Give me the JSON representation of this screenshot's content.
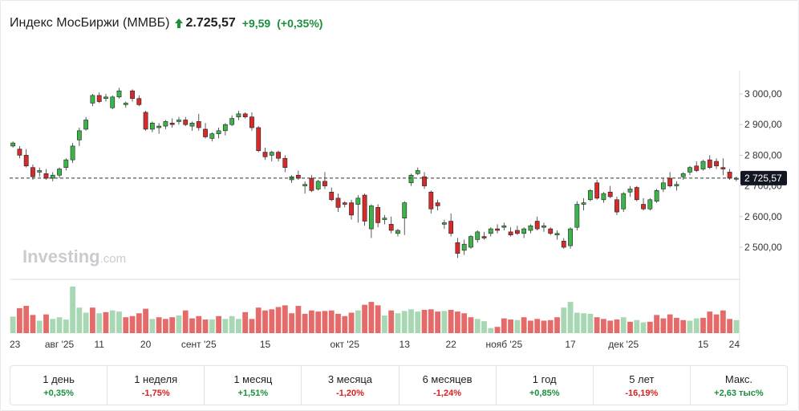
{
  "header": {
    "title": "Индекс МосБиржи (ММВБ)",
    "price": "2.725,57",
    "change": "+9,59",
    "change_pct": "(+0,35%)",
    "arrow_icon": "up-arrow-icon"
  },
  "colors": {
    "up": "#1a8f3c",
    "down": "#d91e1e",
    "candle_up": "#3bb54a",
    "candle_down": "#d62b2b",
    "vol_up": "#a7d8b3",
    "vol_down": "#e56b6b",
    "price_tag_bg": "#131722"
  },
  "watermark": {
    "brand": "Investing",
    "suffix": ".com"
  },
  "chart_data": {
    "type": "candlestick",
    "title": "Индекс МосБиржи (ММВБ)",
    "y_axis_ticks": [
      3000,
      2900,
      2800,
      2700,
      2600,
      2500
    ],
    "y_tick_labels": [
      "3 000,00",
      "2 900,00",
      "2 800,00",
      "2 700,00",
      "2 600,00",
      "2 500,00"
    ],
    "ylim": [
      2395,
      3080
    ],
    "current_price": 2725.57,
    "current_price_label": "2 725,57",
    "x_tick_labels": [
      {
        "label": "23",
        "index": 0
      },
      {
        "label": "авг '25",
        "index": 7
      },
      {
        "label": "11",
        "index": 13
      },
      {
        "label": "20",
        "index": 20
      },
      {
        "label": "сент '25",
        "index": 28
      },
      {
        "label": "15",
        "index": 38
      },
      {
        "label": "окт '25",
        "index": 50
      },
      {
        "label": "13",
        "index": 59
      },
      {
        "label": "22",
        "index": 66
      },
      {
        "label": "нояб '25",
        "index": 74
      },
      {
        "label": "17",
        "index": 84
      },
      {
        "label": "дек '25",
        "index": 92
      },
      {
        "label": "15",
        "index": 104
      },
      {
        "label": "24",
        "index": 111
      }
    ],
    "candles": [
      [
        2830,
        2845,
        2825,
        2840
      ],
      [
        2820,
        2830,
        2790,
        2800
      ],
      [
        2800,
        2820,
        2760,
        2765
      ],
      [
        2760,
        2770,
        2720,
        2730
      ],
      [
        2745,
        2760,
        2730,
        2750
      ],
      [
        2740,
        2755,
        2720,
        2725
      ],
      [
        2725,
        2745,
        2715,
        2735
      ],
      [
        2735,
        2760,
        2725,
        2755
      ],
      [
        2760,
        2790,
        2750,
        2785
      ],
      [
        2785,
        2840,
        2775,
        2830
      ],
      [
        2850,
        2890,
        2830,
        2880
      ],
      [
        2885,
        2925,
        2880,
        2915
      ],
      [
        2970,
        3000,
        2960,
        2995
      ],
      [
        2995,
        3005,
        2970,
        2975
      ],
      [
        2985,
        3000,
        2975,
        2990
      ],
      [
        2955,
        2995,
        2950,
        2990
      ],
      [
        2990,
        3020,
        2985,
        3010
      ],
      [
        2965,
        2975,
        2955,
        2970
      ],
      [
        3010,
        3015,
        2975,
        2985
      ],
      [
        2985,
        2995,
        2960,
        2965
      ],
      [
        2940,
        2945,
        2880,
        2885
      ],
      [
        2885,
        2910,
        2875,
        2905
      ],
      [
        2890,
        2905,
        2870,
        2895
      ],
      [
        2895,
        2915,
        2885,
        2910
      ],
      [
        2905,
        2920,
        2890,
        2900
      ],
      [
        2910,
        2925,
        2900,
        2915
      ],
      [
        2915,
        2925,
        2895,
        2900
      ],
      [
        2895,
        2910,
        2880,
        2905
      ],
      [
        2910,
        2935,
        2880,
        2890
      ],
      [
        2885,
        2905,
        2855,
        2860
      ],
      [
        2855,
        2875,
        2845,
        2870
      ],
      [
        2870,
        2890,
        2855,
        2880
      ],
      [
        2880,
        2905,
        2865,
        2900
      ],
      [
        2900,
        2930,
        2895,
        2920
      ],
      [
        2925,
        2945,
        2915,
        2935
      ],
      [
        2935,
        2940,
        2920,
        2925
      ],
      [
        2925,
        2940,
        2880,
        2890
      ],
      [
        2890,
        2895,
        2810,
        2815
      ],
      [
        2810,
        2825,
        2785,
        2795
      ],
      [
        2800,
        2815,
        2780,
        2810
      ],
      [
        2810,
        2815,
        2780,
        2790
      ],
      [
        2790,
        2800,
        2745,
        2760
      ],
      [
        2720,
        2735,
        2710,
        2730
      ],
      [
        2735,
        2750,
        2720,
        2725
      ],
      [
        2700,
        2715,
        2675,
        2705
      ],
      [
        2725,
        2735,
        2680,
        2685
      ],
      [
        2690,
        2720,
        2685,
        2715
      ],
      [
        2715,
        2745,
        2690,
        2700
      ],
      [
        2680,
        2695,
        2650,
        2655
      ],
      [
        2660,
        2675,
        2615,
        2630
      ],
      [
        2645,
        2650,
        2630,
        2640
      ],
      [
        2645,
        2655,
        2590,
        2605
      ],
      [
        2640,
        2670,
        2580,
        2660
      ],
      [
        2670,
        2675,
        2570,
        2585
      ],
      [
        2560,
        2640,
        2530,
        2635
      ],
      [
        2630,
        2640,
        2565,
        2580
      ],
      [
        2590,
        2605,
        2575,
        2595
      ],
      [
        2575,
        2600,
        2545,
        2555
      ],
      [
        2545,
        2560,
        2535,
        2555
      ],
      [
        2595,
        2650,
        2540,
        2645
      ],
      [
        2710,
        2740,
        2700,
        2735
      ],
      [
        2740,
        2760,
        2735,
        2750
      ],
      [
        2730,
        2745,
        2690,
        2700
      ],
      [
        2680,
        2685,
        2610,
        2625
      ],
      [
        2645,
        2655,
        2620,
        2635
      ],
      [
        2575,
        2590,
        2560,
        2580
      ],
      [
        2585,
        2610,
        2535,
        2545
      ],
      [
        2515,
        2530,
        2465,
        2480
      ],
      [
        2490,
        2525,
        2475,
        2510
      ],
      [
        2500,
        2540,
        2495,
        2535
      ],
      [
        2525,
        2555,
        2515,
        2550
      ],
      [
        2535,
        2550,
        2525,
        2530
      ],
      [
        2545,
        2565,
        2535,
        2560
      ],
      [
        2560,
        2575,
        2545,
        2555
      ],
      [
        2565,
        2580,
        2555,
        2570
      ],
      [
        2550,
        2565,
        2535,
        2540
      ],
      [
        2555,
        2570,
        2540,
        2545
      ],
      [
        2545,
        2565,
        2530,
        2560
      ],
      [
        2555,
        2575,
        2545,
        2570
      ],
      [
        2585,
        2600,
        2555,
        2560
      ],
      [
        2565,
        2580,
        2550,
        2570
      ],
      [
        2560,
        2565,
        2540,
        2545
      ],
      [
        2540,
        2555,
        2525,
        2545
      ],
      [
        2520,
        2530,
        2495,
        2500
      ],
      [
        2505,
        2565,
        2495,
        2560
      ],
      [
        2565,
        2650,
        2555,
        2640
      ],
      [
        2640,
        2660,
        2620,
        2645
      ],
      [
        2655,
        2690,
        2650,
        2685
      ],
      [
        2710,
        2720,
        2655,
        2660
      ],
      [
        2655,
        2680,
        2645,
        2675
      ],
      [
        2680,
        2700,
        2660,
        2665
      ],
      [
        2655,
        2665,
        2605,
        2615
      ],
      [
        2625,
        2680,
        2615,
        2675
      ],
      [
        2680,
        2700,
        2665,
        2690
      ],
      [
        2695,
        2700,
        2650,
        2655
      ],
      [
        2640,
        2660,
        2620,
        2625
      ],
      [
        2625,
        2660,
        2620,
        2655
      ],
      [
        2650,
        2690,
        2645,
        2685
      ],
      [
        2690,
        2725,
        2680,
        2710
      ],
      [
        2725,
        2745,
        2695,
        2700
      ],
      [
        2700,
        2715,
        2685,
        2705
      ],
      [
        2730,
        2745,
        2720,
        2740
      ],
      [
        2745,
        2765,
        2735,
        2760
      ],
      [
        2765,
        2780,
        2745,
        2750
      ],
      [
        2755,
        2785,
        2750,
        2780
      ],
      [
        2785,
        2800,
        2755,
        2760
      ],
      [
        2780,
        2790,
        2755,
        2765
      ],
      [
        2760,
        2790,
        2735,
        2755
      ],
      [
        2745,
        2755,
        2720,
        2725
      ],
      [
        2722,
        2730,
        2715,
        2725
      ]
    ],
    "volume": [
      [
        29,
        "up"
      ],
      [
        44,
        "down"
      ],
      [
        48,
        "down"
      ],
      [
        32,
        "down"
      ],
      [
        22,
        "up"
      ],
      [
        33,
        "down"
      ],
      [
        25,
        "up"
      ],
      [
        28,
        "up"
      ],
      [
        24,
        "up"
      ],
      [
        82,
        "up"
      ],
      [
        45,
        "up"
      ],
      [
        36,
        "up"
      ],
      [
        45,
        "down"
      ],
      [
        35,
        "up"
      ],
      [
        37,
        "down"
      ],
      [
        40,
        "up"
      ],
      [
        38,
        "up"
      ],
      [
        28,
        "down"
      ],
      [
        30,
        "down"
      ],
      [
        35,
        "down"
      ],
      [
        43,
        "down"
      ],
      [
        25,
        "up"
      ],
      [
        28,
        "down"
      ],
      [
        25,
        "down"
      ],
      [
        28,
        "down"
      ],
      [
        31,
        "up"
      ],
      [
        40,
        "down"
      ],
      [
        26,
        "down"
      ],
      [
        30,
        "down"
      ],
      [
        24,
        "down"
      ],
      [
        24,
        "up"
      ],
      [
        30,
        "down"
      ],
      [
        25,
        "up"
      ],
      [
        30,
        "up"
      ],
      [
        25,
        "up"
      ],
      [
        37,
        "down"
      ],
      [
        25,
        "down"
      ],
      [
        45,
        "down"
      ],
      [
        40,
        "down"
      ],
      [
        42,
        "down"
      ],
      [
        46,
        "down"
      ],
      [
        49,
        "down"
      ],
      [
        35,
        "down"
      ],
      [
        48,
        "down"
      ],
      [
        34,
        "down"
      ],
      [
        40,
        "down"
      ],
      [
        38,
        "down"
      ],
      [
        39,
        "down"
      ],
      [
        40,
        "down"
      ],
      [
        34,
        "down"
      ],
      [
        30,
        "down"
      ],
      [
        36,
        "down"
      ],
      [
        40,
        "up"
      ],
      [
        50,
        "down"
      ],
      [
        55,
        "down"
      ],
      [
        49,
        "down"
      ],
      [
        31,
        "up"
      ],
      [
        40,
        "down"
      ],
      [
        35,
        "up"
      ],
      [
        39,
        "up"
      ],
      [
        42,
        "up"
      ],
      [
        38,
        "up"
      ],
      [
        41,
        "down"
      ],
      [
        42,
        "down"
      ],
      [
        38,
        "down"
      ],
      [
        39,
        "up"
      ],
      [
        41,
        "down"
      ],
      [
        38,
        "down"
      ],
      [
        35,
        "down"
      ],
      [
        28,
        "down"
      ],
      [
        25,
        "up"
      ],
      [
        21,
        "up"
      ],
      [
        9,
        "up"
      ],
      [
        11,
        "down"
      ],
      [
        26,
        "down"
      ],
      [
        24,
        "down"
      ],
      [
        23,
        "up"
      ],
      [
        28,
        "down"
      ],
      [
        22,
        "down"
      ],
      [
        25,
        "down"
      ],
      [
        22,
        "down"
      ],
      [
        23,
        "down"
      ],
      [
        28,
        "down"
      ],
      [
        45,
        "up"
      ],
      [
        55,
        "up"
      ],
      [
        36,
        "up"
      ],
      [
        35,
        "up"
      ],
      [
        34,
        "up"
      ],
      [
        28,
        "down"
      ],
      [
        25,
        "down"
      ],
      [
        22,
        "down"
      ],
      [
        24,
        "down"
      ],
      [
        28,
        "up"
      ],
      [
        20,
        "down"
      ],
      [
        23,
        "up"
      ],
      [
        19,
        "up"
      ],
      [
        20,
        "down"
      ],
      [
        32,
        "down"
      ],
      [
        26,
        "down"
      ],
      [
        33,
        "down"
      ],
      [
        27,
        "down"
      ],
      [
        23,
        "down"
      ],
      [
        22,
        "up"
      ],
      [
        26,
        "up"
      ],
      [
        27,
        "down"
      ],
      [
        38,
        "down"
      ],
      [
        33,
        "down"
      ],
      [
        40,
        "down"
      ],
      [
        25,
        "down"
      ],
      [
        23,
        "up"
      ]
    ]
  },
  "periods": [
    {
      "label": "1 день",
      "change": "+0,35%",
      "dir": "up"
    },
    {
      "label": "1 неделя",
      "change": "-1,75%",
      "dir": "down"
    },
    {
      "label": "1 месяц",
      "change": "+1,51%",
      "dir": "up"
    },
    {
      "label": "3 месяца",
      "change": "-1,20%",
      "dir": "down"
    },
    {
      "label": "6 месяцев",
      "change": "-1,24%",
      "dir": "down"
    },
    {
      "label": "1 год",
      "change": "+0,85%",
      "dir": "up"
    },
    {
      "label": "5 лет",
      "change": "-16,19%",
      "dir": "down"
    },
    {
      "label": "Макс.",
      "change": "+2,63 тыс%",
      "dir": "up"
    }
  ]
}
